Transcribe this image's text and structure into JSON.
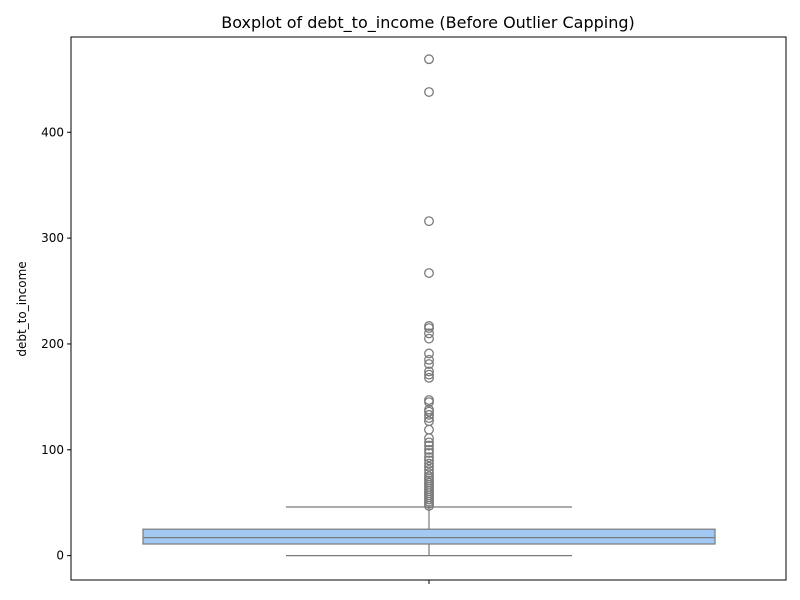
{
  "chart_data": {
    "type": "boxplot",
    "title": "Boxplot of debt_to_income (Before Outlier Capping)",
    "xlabel": "",
    "ylabel": "debt_to_income",
    "ylim": [
      -23,
      490
    ],
    "yticks": [
      0,
      100,
      200,
      300,
      400
    ],
    "grid": false,
    "box": {
      "whisker_low": 0,
      "q1": 11,
      "median": 17,
      "q3": 25,
      "whisker_high": 46
    },
    "outliers": [
      469,
      438,
      316,
      267,
      217,
      215,
      210,
      205,
      191,
      185,
      181,
      174,
      171,
      168,
      147,
      145,
      138,
      136,
      133,
      130,
      127,
      119,
      111,
      107,
      104,
      100,
      97,
      93,
      90,
      87,
      84,
      81,
      78,
      75,
      73,
      71,
      69,
      67,
      65,
      63,
      61,
      59,
      57,
      55,
      53,
      51,
      49,
      47
    ],
    "colors": {
      "box_fill": "#a1c9f4",
      "lines": "#7a7a7a",
      "outlier_edge": "#7a7a7a"
    }
  }
}
